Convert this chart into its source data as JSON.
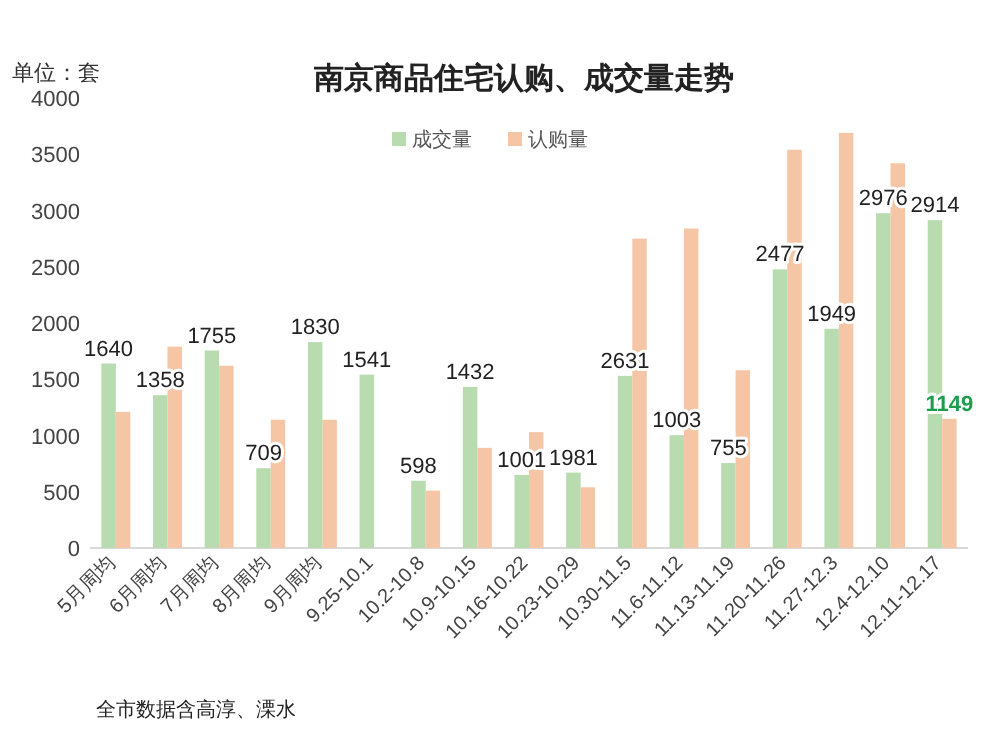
{
  "chart_data": {
    "type": "bar",
    "title": "南京商品住宅认购、成交量走势",
    "ylabel": "单位：套",
    "categories": [
      "5月周均",
      "6月周均",
      "7月周均",
      "8月周均",
      "9月周均",
      "9.25-10.1",
      "10.2-10.8",
      "10.9-10.15",
      "10.16-10.22",
      "10.23-10.29",
      "10.30-11.5",
      "11.6-11.12",
      "11.13-11.19",
      "11.20-11.26",
      "11.27-12.3",
      "12.4-12.10",
      "12.11-12.17"
    ],
    "series": [
      {
        "name": "成交量",
        "color": "#b9dbb0",
        "values": [
          1640,
          1358,
          1755,
          709,
          1830,
          1541,
          598,
          1432,
          650,
          670,
          1530,
          1003,
          755,
          2477,
          1949,
          2976,
          2914
        ],
        "value_labels": [
          "1640",
          "1358",
          "1755",
          "709",
          "1830",
          "1541",
          "598",
          "1432",
          null,
          null,
          null,
          "1003",
          "755",
          "2477",
          "1949",
          "2976",
          "2914"
        ]
      },
      {
        "name": "认购量",
        "color": "#f5c6a5",
        "values": [
          1210,
          1790,
          1620,
          1140,
          1140,
          null,
          510,
          890,
          1030,
          540,
          2750,
          2840,
          1580,
          3540,
          3690,
          3420,
          1149
        ],
        "value_labels": [
          null,
          null,
          null,
          null,
          null,
          null,
          null,
          null,
          null,
          null,
          null,
          null,
          null,
          null,
          null,
          null,
          "1149"
        ]
      }
    ],
    "ylim": [
      0,
      4000
    ],
    "yticks": [
      0,
      500,
      1000,
      1500,
      2000,
      2500,
      3000,
      3500,
      4000
    ],
    "grid": false,
    "legend": "top right",
    "annotations": [
      "全市数据含高淳、溧水",
      {
        "text": "1001",
        "x": "10.16-10.22",
        "y": 650
      },
      {
        "text": "1981",
        "x": "10.23-10.29",
        "y": 670
      },
      {
        "text": "2631",
        "x": "10.30-11.5",
        "y": 1530
      }
    ]
  }
}
